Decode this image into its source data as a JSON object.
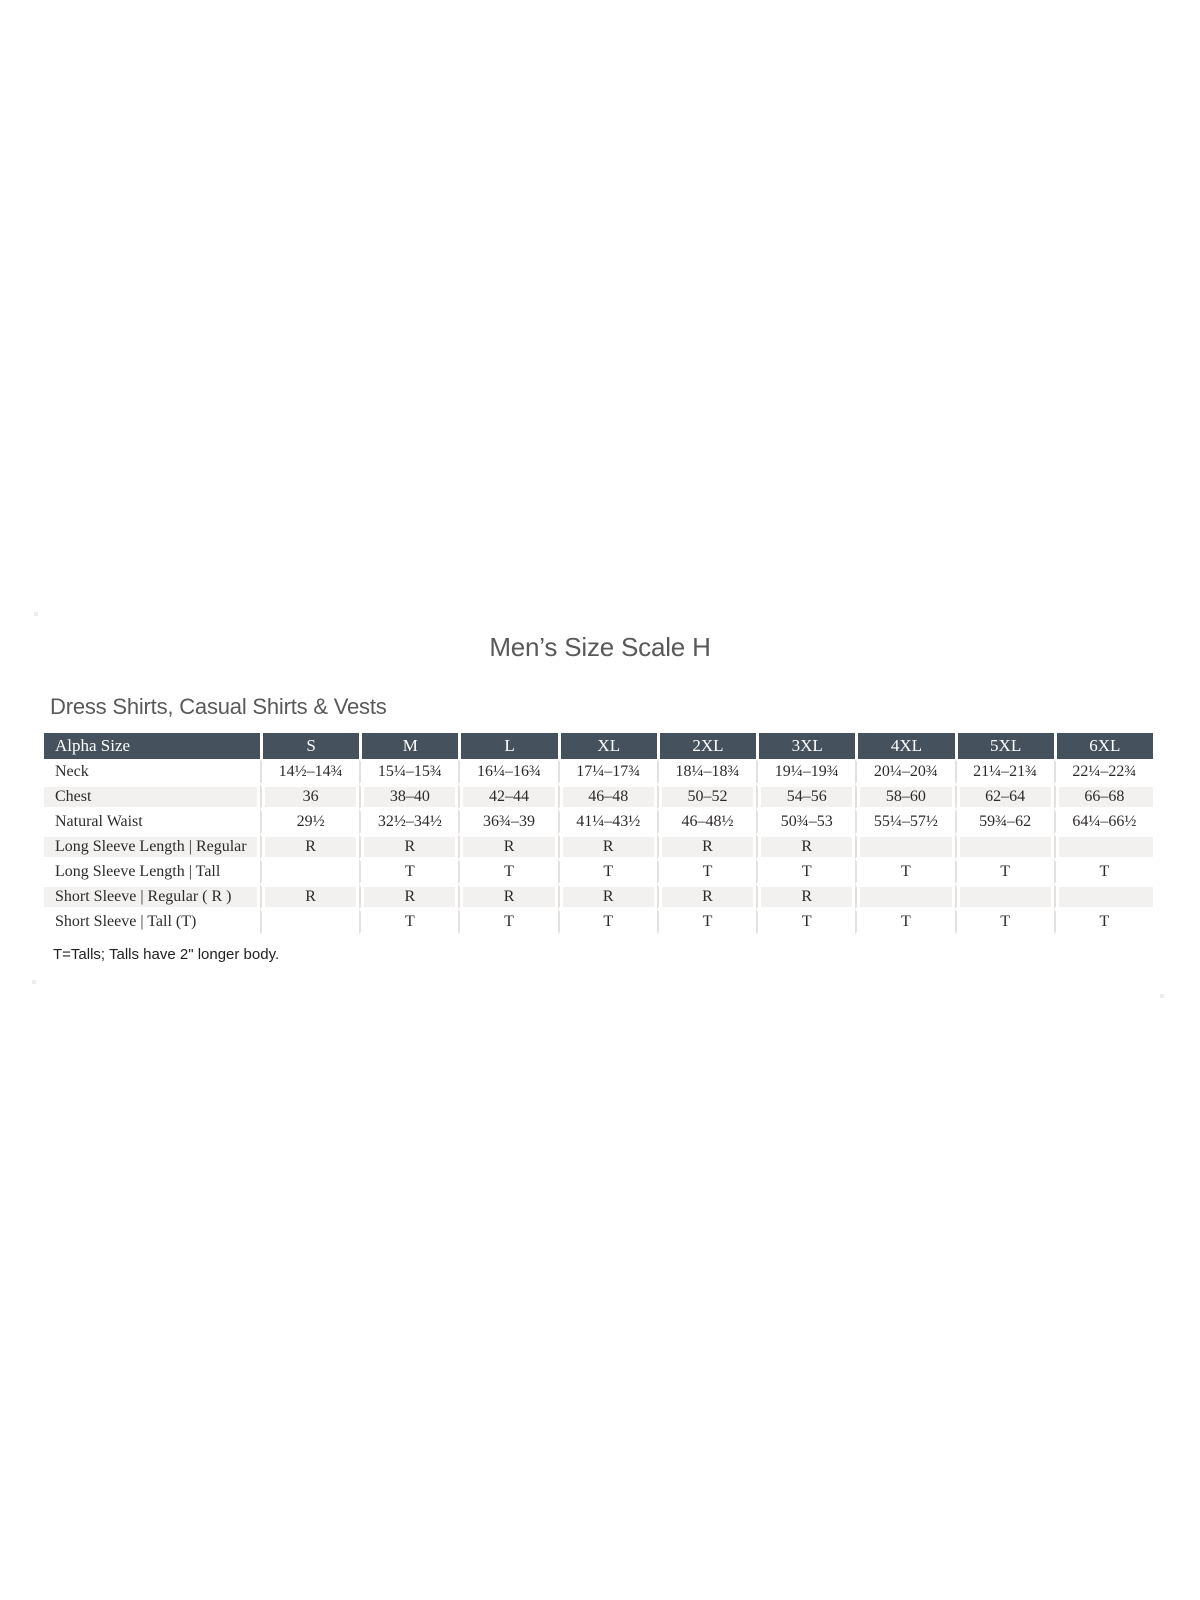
{
  "page": {
    "title": "Men’s Size Scale H",
    "section_heading": "Dress Shirts, Casual Shirts & Vests",
    "footnote": "T=Talls; Talls have 2\" longer body."
  },
  "table": {
    "header": [
      "Alpha Size",
      "S",
      "M",
      "L",
      "XL",
      "2XL",
      "3XL",
      "4XL",
      "5XL",
      "6XL"
    ],
    "rows": [
      {
        "label": "Neck",
        "values": [
          "14½–14¾",
          "15¼–15¾",
          "16¼–16¾",
          "17¼–17¾",
          "18¼–18¾",
          "19¼–19¾",
          "20¼–20¾",
          "21¼–21¾",
          "22¼–22¾"
        ]
      },
      {
        "label": "Chest",
        "values": [
          "36",
          "38–40",
          "42–44",
          "46–48",
          "50–52",
          "54–56",
          "58–60",
          "62–64",
          "66–68"
        ]
      },
      {
        "label": "Natural Waist",
        "values": [
          "29½",
          "32½–34½",
          "36¾–39",
          "41¼–43½",
          "46–48½",
          "50¾–53",
          "55¼–57½",
          "59¾–62",
          "64¼–66½"
        ]
      },
      {
        "label": "Long Sleeve Length | Regular",
        "values": [
          "R",
          "R",
          "R",
          "R",
          "R",
          "R",
          "",
          "",
          ""
        ]
      },
      {
        "label": "Long Sleeve Length | Tall",
        "values": [
          "",
          "T",
          "T",
          "T",
          "T",
          "T",
          "T",
          "T",
          "T"
        ]
      },
      {
        "label": "Short Sleeve | Regular ( R )",
        "values": [
          "R",
          "R",
          "R",
          "R",
          "R",
          "R",
          "",
          "",
          ""
        ]
      },
      {
        "label": "Short Sleeve | Tall (T)",
        "values": [
          "",
          "T",
          "T",
          "T",
          "T",
          "T",
          "T",
          "T",
          "T"
        ]
      }
    ]
  },
  "colors": {
    "header_bg": "#45525d",
    "header_text": "#ffffff",
    "row_alt_bg": "#f2f1ef",
    "grid_line": "#e4e1dd",
    "body_text": "#2d2b2a",
    "heading_text": "#59595b",
    "footnote_text": "#232122"
  }
}
